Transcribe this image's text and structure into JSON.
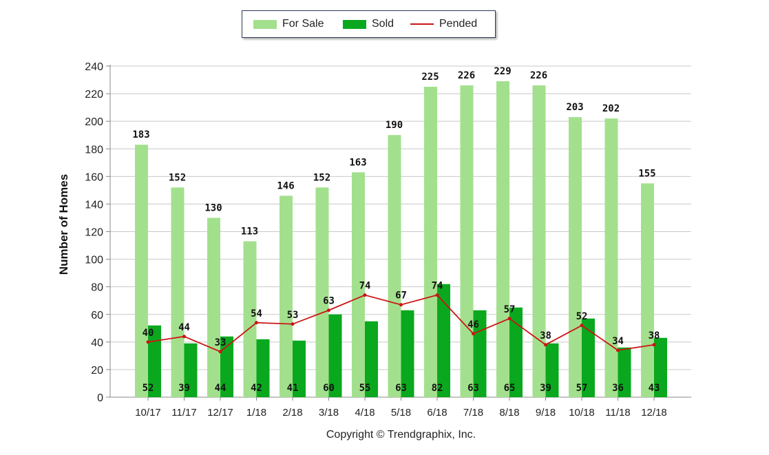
{
  "legend": {
    "for_sale": "For Sale",
    "sold": "Sold",
    "pended": "Pended"
  },
  "copyright": "Copyright © Trendgraphix, Inc.",
  "colors": {
    "for_sale": "#a3e08d",
    "sold": "#0aa81e",
    "pended": "#cc1414",
    "grid": "#c8c8c8"
  },
  "chart_data": {
    "type": "bar",
    "categories": [
      "10/17",
      "11/17",
      "12/17",
      "1/18",
      "2/18",
      "3/18",
      "4/18",
      "5/18",
      "6/18",
      "7/18",
      "8/18",
      "9/18",
      "10/18",
      "11/18",
      "12/18"
    ],
    "series": [
      {
        "name": "For Sale",
        "type": "bar",
        "values": [
          183,
          152,
          130,
          113,
          146,
          152,
          163,
          190,
          225,
          226,
          229,
          226,
          203,
          202,
          155
        ]
      },
      {
        "name": "Sold",
        "type": "bar",
        "values": [
          52,
          39,
          44,
          42,
          41,
          60,
          55,
          63,
          82,
          63,
          65,
          39,
          57,
          36,
          43
        ]
      },
      {
        "name": "Pended",
        "type": "line",
        "values": [
          40,
          44,
          33,
          54,
          53,
          63,
          74,
          67,
          74,
          46,
          57,
          38,
          52,
          34,
          38
        ]
      }
    ],
    "ylabel": "Number of Homes",
    "xlabel": "",
    "ylim": [
      0,
      240
    ],
    "yticks": [
      0,
      20,
      40,
      60,
      80,
      100,
      120,
      140,
      160,
      180,
      200,
      220,
      240
    ],
    "grid": true,
    "legend_position": "top-center"
  }
}
